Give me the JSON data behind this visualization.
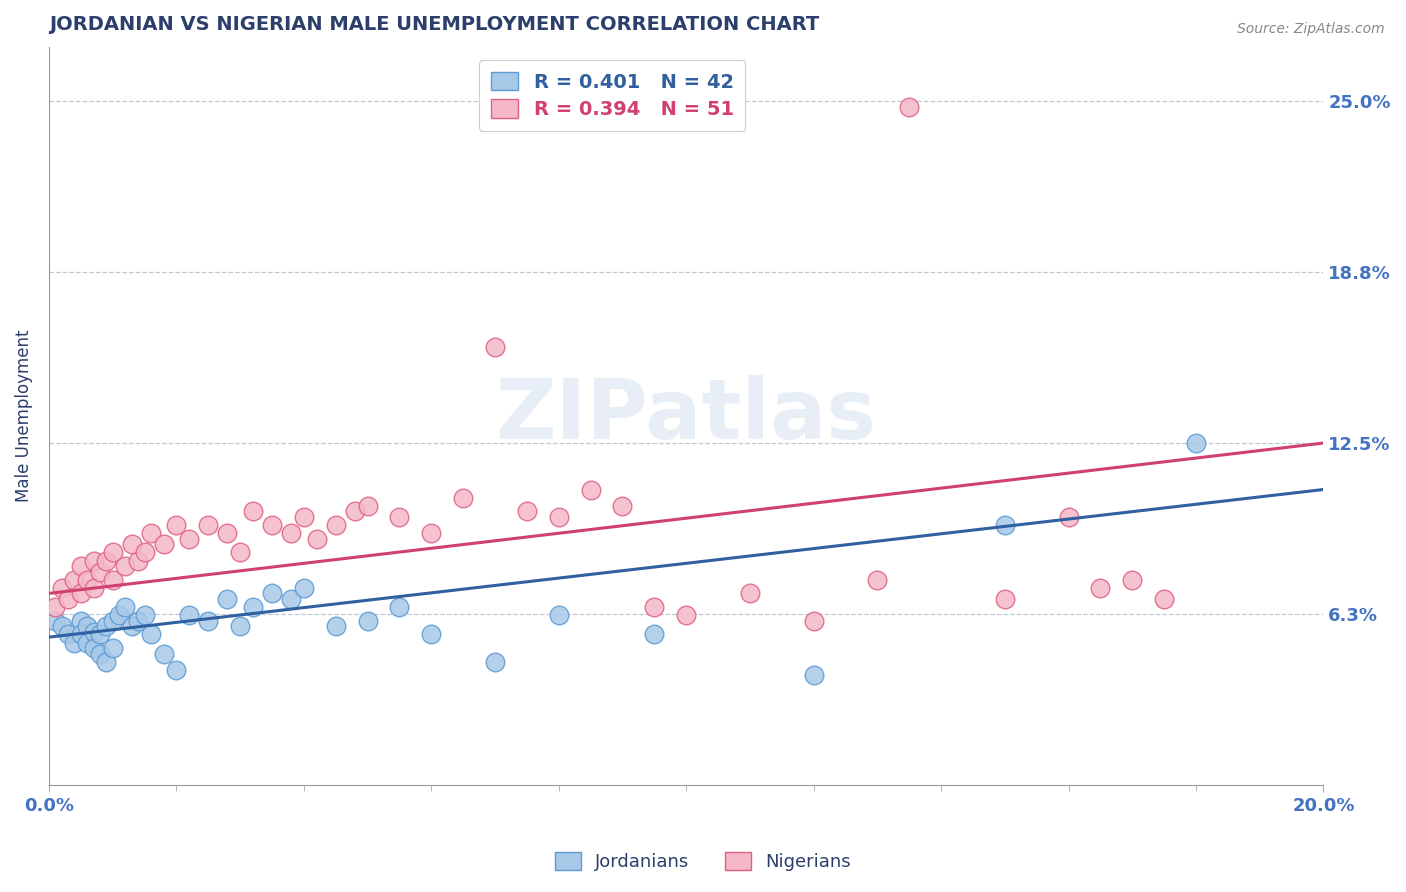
{
  "title": "JORDANIAN VS NIGERIAN MALE UNEMPLOYMENT CORRELATION CHART",
  "source": "Source: ZipAtlas.com",
  "ylabel": "Male Unemployment",
  "ytick_vals": [
    0.0625,
    0.125,
    0.1875,
    0.25
  ],
  "ytick_labels": [
    "6.3%",
    "12.5%",
    "18.8%",
    "25.0%"
  ],
  "xlim": [
    0.0,
    0.2
  ],
  "ylim": [
    0.0,
    0.27
  ],
  "blue_R": 0.401,
  "blue_N": 42,
  "pink_R": 0.394,
  "pink_N": 51,
  "blue_fill_color": "#a8c8e8",
  "pink_fill_color": "#f4b8c8",
  "blue_edge_color": "#5b9bd5",
  "pink_edge_color": "#e06080",
  "blue_line_color": "#3060a0",
  "pink_line_color": "#d04070",
  "title_color": "#2c3e6b",
  "axis_label_color": "#4472c4",
  "grid_color": "#c0c8d8",
  "background_color": "#ffffff",
  "blue_trend_x0": 0.0,
  "blue_trend_y0": 0.054,
  "blue_trend_x1": 0.2,
  "blue_trend_y1": 0.108,
  "pink_trend_x0": 0.0,
  "pink_trend_y0": 0.07,
  "pink_trend_x1": 0.2,
  "pink_trend_y1": 0.125,
  "blue_x": [
    0.001,
    0.002,
    0.003,
    0.004,
    0.005,
    0.005,
    0.006,
    0.006,
    0.007,
    0.007,
    0.008,
    0.008,
    0.009,
    0.009,
    0.01,
    0.01,
    0.011,
    0.012,
    0.013,
    0.014,
    0.015,
    0.016,
    0.018,
    0.02,
    0.022,
    0.025,
    0.028,
    0.03,
    0.032,
    0.035,
    0.038,
    0.04,
    0.045,
    0.05,
    0.055,
    0.06,
    0.07,
    0.08,
    0.095,
    0.12,
    0.15,
    0.18
  ],
  "blue_y": [
    0.06,
    0.058,
    0.055,
    0.052,
    0.06,
    0.055,
    0.058,
    0.052,
    0.056,
    0.05,
    0.055,
    0.048,
    0.058,
    0.045,
    0.06,
    0.05,
    0.062,
    0.065,
    0.058,
    0.06,
    0.062,
    0.055,
    0.048,
    0.042,
    0.062,
    0.06,
    0.068,
    0.058,
    0.065,
    0.07,
    0.068,
    0.072,
    0.058,
    0.06,
    0.065,
    0.055,
    0.045,
    0.062,
    0.055,
    0.04,
    0.095,
    0.125
  ],
  "pink_x": [
    0.001,
    0.002,
    0.003,
    0.004,
    0.005,
    0.005,
    0.006,
    0.007,
    0.007,
    0.008,
    0.009,
    0.01,
    0.01,
    0.012,
    0.013,
    0.014,
    0.015,
    0.016,
    0.018,
    0.02,
    0.022,
    0.025,
    0.028,
    0.03,
    0.032,
    0.035,
    0.038,
    0.04,
    0.042,
    0.045,
    0.048,
    0.05,
    0.055,
    0.06,
    0.065,
    0.07,
    0.075,
    0.08,
    0.085,
    0.09,
    0.095,
    0.1,
    0.11,
    0.12,
    0.13,
    0.135,
    0.15,
    0.16,
    0.165,
    0.17,
    0.175
  ],
  "pink_y": [
    0.065,
    0.072,
    0.068,
    0.075,
    0.07,
    0.08,
    0.075,
    0.072,
    0.082,
    0.078,
    0.082,
    0.075,
    0.085,
    0.08,
    0.088,
    0.082,
    0.085,
    0.092,
    0.088,
    0.095,
    0.09,
    0.095,
    0.092,
    0.085,
    0.1,
    0.095,
    0.092,
    0.098,
    0.09,
    0.095,
    0.1,
    0.102,
    0.098,
    0.092,
    0.105,
    0.16,
    0.1,
    0.098,
    0.108,
    0.102,
    0.065,
    0.062,
    0.07,
    0.06,
    0.075,
    0.248,
    0.068,
    0.098,
    0.072,
    0.075,
    0.068
  ]
}
